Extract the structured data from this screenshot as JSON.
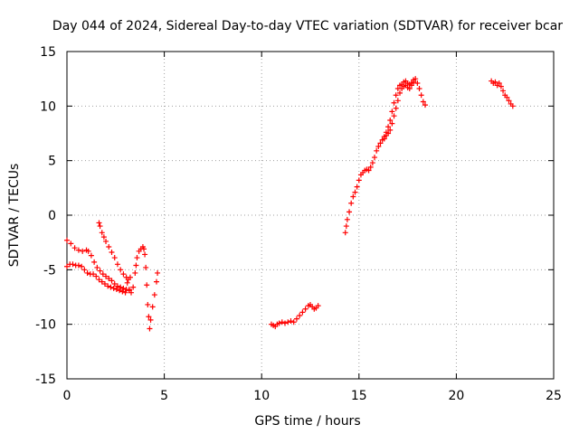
{
  "chart_data": {
    "type": "scatter",
    "title": "Day 044 of 2024, Sidereal Day-to-day VTEC variation (SDTVAR) for receiver bcar",
    "xlabel": "GPS time / hours",
    "ylabel": "SDTVAR / TECUs",
    "xlim": [
      0,
      25
    ],
    "ylim": [
      -15,
      15
    ],
    "xticks": [
      0,
      5,
      10,
      15,
      20,
      25
    ],
    "yticks": [
      -15,
      -10,
      -5,
      0,
      5,
      10,
      15
    ],
    "xtick_labels": [
      "0",
      "5",
      "10",
      "15",
      "20",
      "25"
    ],
    "ytick_labels": [
      "-15",
      "-10",
      "-5",
      "0",
      "5",
      "10",
      "15"
    ],
    "grid": true,
    "marker": "+",
    "color": "#ff0000",
    "series": [
      {
        "points": [
          [
            0.0,
            -2.3
          ],
          [
            0.2,
            -2.6
          ],
          [
            0.4,
            -3.0
          ],
          [
            0.6,
            -3.2
          ],
          [
            0.8,
            -3.3
          ],
          [
            1.0,
            -3.2
          ],
          [
            1.1,
            -3.3
          ],
          [
            1.25,
            -3.7
          ],
          [
            1.4,
            -4.3
          ],
          [
            1.55,
            -4.8
          ],
          [
            1.7,
            -5.1
          ],
          [
            1.85,
            -5.4
          ],
          [
            2.0,
            -5.6
          ],
          [
            2.15,
            -5.8
          ],
          [
            2.3,
            -6.0
          ],
          [
            2.45,
            -6.3
          ],
          [
            2.6,
            -6.5
          ],
          [
            2.75,
            -6.6
          ],
          [
            2.9,
            -6.7
          ],
          [
            3.05,
            -6.8
          ],
          [
            3.2,
            -6.9
          ]
        ]
      },
      {
        "points": [
          [
            0.0,
            -4.7
          ],
          [
            0.15,
            -4.5
          ],
          [
            0.3,
            -4.5
          ],
          [
            0.45,
            -4.6
          ],
          [
            0.6,
            -4.6
          ],
          [
            0.75,
            -4.7
          ],
          [
            0.9,
            -5.0
          ],
          [
            1.05,
            -5.3
          ],
          [
            1.2,
            -5.4
          ],
          [
            1.35,
            -5.4
          ],
          [
            1.5,
            -5.6
          ],
          [
            1.65,
            -5.9
          ],
          [
            1.8,
            -6.1
          ],
          [
            1.95,
            -6.3
          ],
          [
            2.1,
            -6.5
          ],
          [
            2.25,
            -6.6
          ],
          [
            2.4,
            -6.7
          ],
          [
            2.55,
            -6.8
          ],
          [
            2.7,
            -6.9
          ],
          [
            2.85,
            -7.0
          ],
          [
            3.0,
            -7.1
          ]
        ]
      },
      {
        "points": [
          [
            1.65,
            -0.7
          ],
          [
            1.7,
            -1.0
          ],
          [
            1.8,
            -1.6
          ],
          [
            1.9,
            -2.0
          ],
          [
            2.0,
            -2.4
          ],
          [
            2.15,
            -2.9
          ],
          [
            2.3,
            -3.4
          ],
          [
            2.45,
            -3.9
          ],
          [
            2.6,
            -4.5
          ],
          [
            2.75,
            -5.0
          ],
          [
            2.9,
            -5.4
          ],
          [
            3.05,
            -5.7
          ],
          [
            3.15,
            -5.9
          ],
          [
            3.25,
            -5.7
          ]
        ]
      },
      {
        "points": [
          [
            3.1,
            -6.2
          ],
          [
            3.2,
            -6.8
          ],
          [
            3.3,
            -7.1
          ],
          [
            3.4,
            -6.6
          ],
          [
            3.5,
            -5.3
          ],
          [
            3.55,
            -4.6
          ],
          [
            3.6,
            -3.9
          ],
          [
            3.7,
            -3.3
          ],
          [
            3.8,
            -3.1
          ],
          [
            3.9,
            -2.9
          ],
          [
            3.95,
            -3.1
          ],
          [
            4.0,
            -3.6
          ],
          [
            4.05,
            -4.8
          ],
          [
            4.1,
            -6.4
          ],
          [
            4.15,
            -8.2
          ],
          [
            4.2,
            -9.3
          ],
          [
            4.25,
            -10.4
          ],
          [
            4.3,
            -9.6
          ],
          [
            4.4,
            -8.4
          ],
          [
            4.5,
            -7.3
          ],
          [
            4.6,
            -6.1
          ],
          [
            4.65,
            -5.3
          ]
        ]
      },
      {
        "points": [
          [
            10.5,
            -10.0
          ],
          [
            10.6,
            -10.1
          ],
          [
            10.7,
            -10.2
          ],
          [
            10.8,
            -10.0
          ],
          [
            10.9,
            -9.9
          ],
          [
            11.05,
            -9.8
          ],
          [
            11.2,
            -9.9
          ],
          [
            11.35,
            -9.8
          ],
          [
            11.5,
            -9.7
          ],
          [
            11.65,
            -9.8
          ],
          [
            11.8,
            -9.5
          ],
          [
            11.95,
            -9.2
          ],
          [
            12.1,
            -8.9
          ],
          [
            12.25,
            -8.6
          ],
          [
            12.4,
            -8.3
          ],
          [
            12.5,
            -8.2
          ],
          [
            12.6,
            -8.4
          ],
          [
            12.7,
            -8.6
          ],
          [
            12.8,
            -8.5
          ],
          [
            12.9,
            -8.3
          ]
        ]
      },
      {
        "points": [
          [
            14.3,
            -1.6
          ],
          [
            14.35,
            -1.0
          ],
          [
            14.4,
            -0.4
          ],
          [
            14.5,
            0.3
          ],
          [
            14.6,
            1.1
          ],
          [
            14.7,
            1.7
          ],
          [
            14.8,
            2.1
          ],
          [
            14.9,
            2.6
          ],
          [
            15.0,
            3.2
          ],
          [
            15.1,
            3.7
          ],
          [
            15.2,
            3.9
          ],
          [
            15.3,
            4.1
          ],
          [
            15.4,
            4.2
          ],
          [
            15.5,
            4.1
          ],
          [
            15.6,
            4.4
          ],
          [
            15.7,
            4.8
          ],
          [
            15.8,
            5.3
          ],
          [
            15.9,
            5.9
          ],
          [
            16.0,
            6.3
          ],
          [
            16.1,
            6.6
          ],
          [
            16.2,
            6.9
          ],
          [
            16.3,
            7.2
          ],
          [
            16.4,
            7.6
          ],
          [
            16.5,
            8.1
          ],
          [
            16.6,
            8.7
          ],
          [
            16.7,
            9.5
          ],
          [
            16.8,
            10.3
          ],
          [
            16.9,
            11.0
          ],
          [
            17.0,
            11.6
          ],
          [
            17.1,
            11.9
          ],
          [
            17.2,
            12.0
          ],
          [
            17.3,
            12.2
          ],
          [
            17.4,
            12.3
          ],
          [
            17.5,
            12.1
          ],
          [
            17.6,
            12.0
          ],
          [
            17.7,
            12.1
          ],
          [
            17.8,
            12.4
          ],
          [
            17.9,
            12.5
          ],
          [
            18.0,
            12.1
          ],
          [
            18.1,
            11.6
          ],
          [
            18.2,
            11.0
          ],
          [
            18.3,
            10.4
          ],
          [
            18.4,
            10.1
          ]
        ]
      },
      {
        "points": [
          [
            16.3,
            7.0
          ],
          [
            16.4,
            7.3
          ],
          [
            16.5,
            7.5
          ],
          [
            16.6,
            7.8
          ],
          [
            16.7,
            8.4
          ],
          [
            16.8,
            9.1
          ],
          [
            16.9,
            9.8
          ],
          [
            17.0,
            10.5
          ],
          [
            17.1,
            11.2
          ],
          [
            17.2,
            11.6
          ],
          [
            17.3,
            11.8
          ],
          [
            17.4,
            11.9
          ],
          [
            17.5,
            11.7
          ],
          [
            17.6,
            11.6
          ],
          [
            17.7,
            11.9
          ],
          [
            17.8,
            12.2
          ]
        ]
      },
      {
        "points": [
          [
            21.8,
            12.3
          ],
          [
            21.9,
            12.1
          ],
          [
            22.0,
            12.2
          ],
          [
            22.1,
            11.9
          ],
          [
            22.2,
            12.1
          ],
          [
            22.3,
            11.8
          ],
          [
            22.4,
            11.4
          ],
          [
            22.5,
            11.0
          ],
          [
            22.6,
            10.8
          ],
          [
            22.7,
            10.5
          ],
          [
            22.8,
            10.2
          ],
          [
            22.9,
            10.0
          ]
        ]
      }
    ]
  }
}
